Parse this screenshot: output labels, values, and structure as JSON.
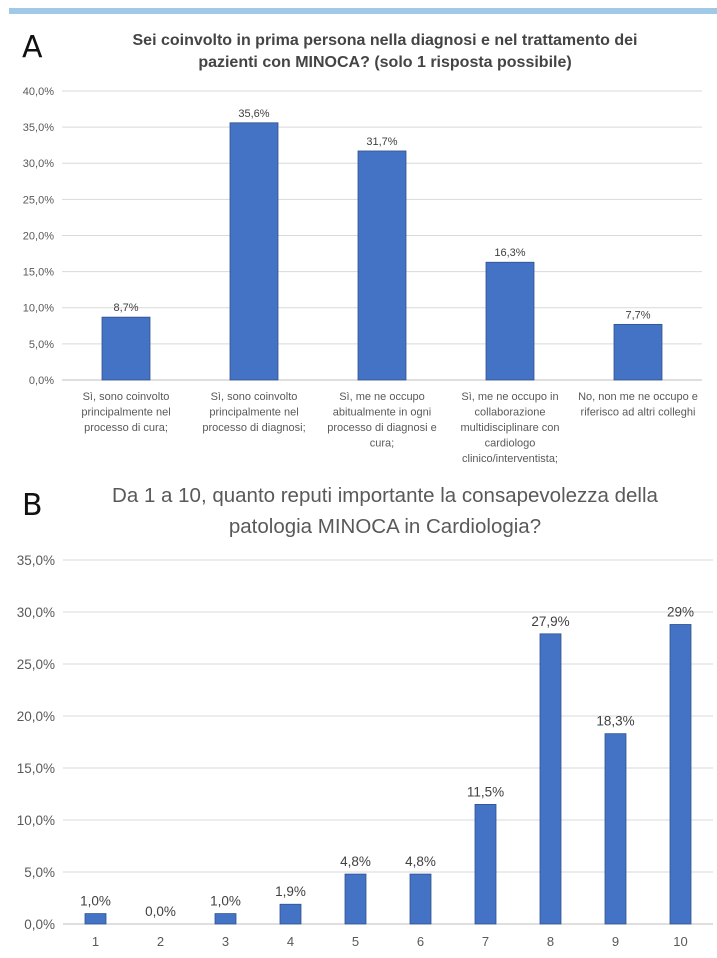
{
  "panel_a": {
    "letter": "A",
    "title_line1": "Sei coinvolto in prima persona nella diagnosi e nel trattamento dei",
    "title_line2": "pazienti con MINOCA? (solo 1 risposta possibile)"
  },
  "panel_b": {
    "letter": "B",
    "title_line1": "Da 1 a 10, quanto reputi importante la consapevolezza della",
    "title_line2": "patologia MINOCA in Cardiologia?"
  },
  "colors": {
    "bar": "#4472c4",
    "bar_outline": "#2f528f",
    "gridline": "#d9d9d9",
    "top_rule": "#9fc9e6"
  },
  "chart_data": [
    {
      "type": "bar",
      "title": "Sei coinvolto in prima persona nella diagnosi e nel trattamento dei pazienti con MINOCA? (solo 1 risposta possibile)",
      "categories": [
        [
          "Sì, sono coinvolto",
          "principalmente nel",
          "processo di cura;"
        ],
        [
          "Sì, sono coinvolto",
          "principalmente nel",
          "processo di diagnosi;"
        ],
        [
          "Sì, me ne occupo",
          "abitualmente in ogni",
          "processo di diagnosi e",
          "cura;"
        ],
        [
          "Sì, me ne occupo in",
          "collaborazione",
          "multidisciplinare con",
          "cardiologo",
          "clinico/interventista;"
        ],
        [
          "No, non me ne occupo e",
          "riferisco ad altri colleghi"
        ]
      ],
      "values": [
        8.7,
        35.6,
        31.7,
        16.3,
        7.7
      ],
      "data_labels": [
        "8,7%",
        "35,6%",
        "31,7%",
        "16,3%",
        "7,7%"
      ],
      "ylim": [
        0,
        40
      ],
      "yticks": [
        0,
        5,
        10,
        15,
        20,
        25,
        30,
        35,
        40
      ],
      "ytick_labels": [
        "0,0%",
        "5,0%",
        "10,0%",
        "15,0%",
        "20,0%",
        "25,0%",
        "30,0%",
        "35,0%",
        "40,0%"
      ],
      "grid": true,
      "xlabel": "",
      "ylabel": ""
    },
    {
      "type": "bar",
      "title": "Da 1 a 10, quanto reputi importante la consapevolezza della patologia MINOCA in Cardiologia?",
      "categories": [
        "1",
        "2",
        "3",
        "4",
        "5",
        "6",
        "7",
        "8",
        "9",
        "10"
      ],
      "values": [
        1.0,
        0.0,
        1.0,
        1.9,
        4.8,
        4.8,
        11.5,
        27.9,
        18.3,
        28.8
      ],
      "data_labels": [
        "1,0%",
        "0,0%",
        "1,0%",
        "1,9%",
        "4,8%",
        "4,8%",
        "11,5%",
        "27,9%",
        "18,3%",
        "29%"
      ],
      "ylim": [
        0,
        35
      ],
      "yticks": [
        0,
        5,
        10,
        15,
        20,
        25,
        30,
        35
      ],
      "ytick_labels": [
        "0,0%",
        "5,0%",
        "10,0%",
        "15,0%",
        "20,0%",
        "25,0%",
        "30,0%",
        "35,0%"
      ],
      "grid": true,
      "xlabel": "",
      "ylabel": ""
    }
  ]
}
